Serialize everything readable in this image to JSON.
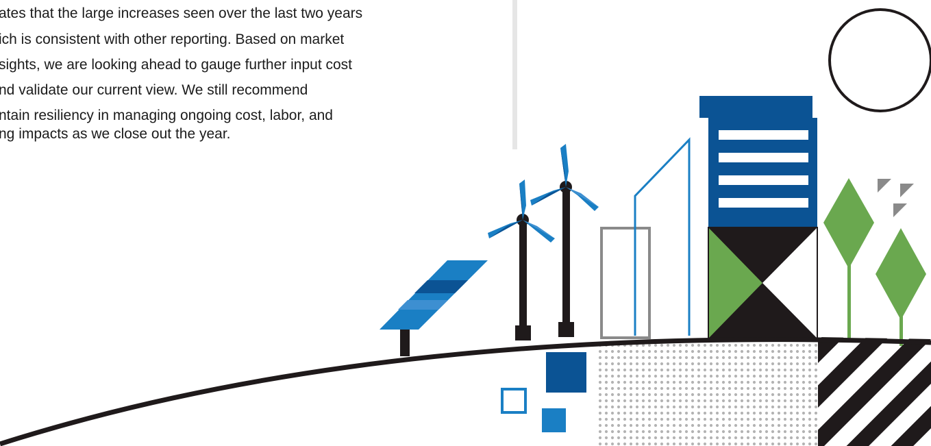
{
  "document": {
    "paragraph_lines": [
      "ates that the large increases seen over the last two years",
      "ich is consistent with other reporting. Based on market",
      "sights, we are looking ahead to gauge further input cost",
      "nd validate our current view. We still recommend",
      "ntain resiliency in managing ongoing cost, labor, and",
      "ng impacts as we close out the year."
    ]
  },
  "illustration": {
    "palette": {
      "dark_blue": "#0b5394",
      "bright_blue": "#1a7fc4",
      "mid_blue": "#3d8fd1",
      "green": "#6aa84f",
      "near_black": "#1f1a1b",
      "gray": "#8a8a8a",
      "dot_gray": "#b3b3b3"
    }
  }
}
